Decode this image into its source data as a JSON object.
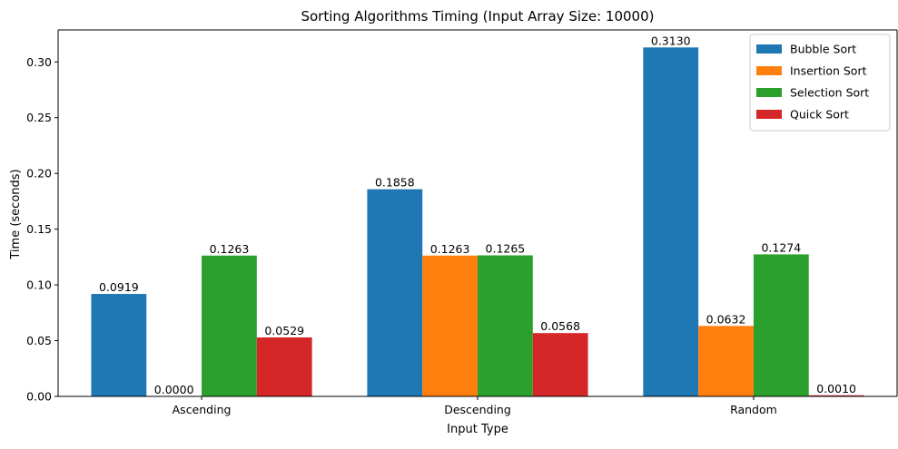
{
  "chart_data": {
    "type": "bar",
    "title": "Sorting Algorithms Timing (Input Array Size: 10000)",
    "xlabel": "Input Type",
    "ylabel": "Time (seconds)",
    "categories": [
      "Ascending",
      "Descending",
      "Random"
    ],
    "series": [
      {
        "name": "Bubble Sort",
        "color": "#1f77b4",
        "values": [
          0.0919,
          0.1858,
          0.313
        ],
        "labels": [
          "0.0919",
          "0.1858",
          "0.3130"
        ]
      },
      {
        "name": "Insertion Sort",
        "color": "#ff7f0e",
        "values": [
          0.0,
          0.1263,
          0.0632
        ],
        "labels": [
          "0.0000",
          "0.1263",
          "0.0632"
        ]
      },
      {
        "name": "Selection Sort",
        "color": "#2ca02c",
        "values": [
          0.1263,
          0.1265,
          0.1274
        ],
        "labels": [
          "0.1263",
          "0.1265",
          "0.1274"
        ]
      },
      {
        "name": "Quick Sort",
        "color": "#d62728",
        "values": [
          0.0529,
          0.0568,
          0.001
        ],
        "labels": [
          "0.0529",
          "0.0568",
          "0.0010"
        ]
      }
    ],
    "ylim": [
      0,
      0.3287
    ],
    "yticks": [
      0.0,
      0.05,
      0.1,
      0.15,
      0.2,
      0.25,
      0.3
    ],
    "ytick_labels": [
      "0.00",
      "0.05",
      "0.10",
      "0.15",
      "0.20",
      "0.25",
      "0.30"
    ],
    "grid": false,
    "legend_position": "top-right"
  }
}
